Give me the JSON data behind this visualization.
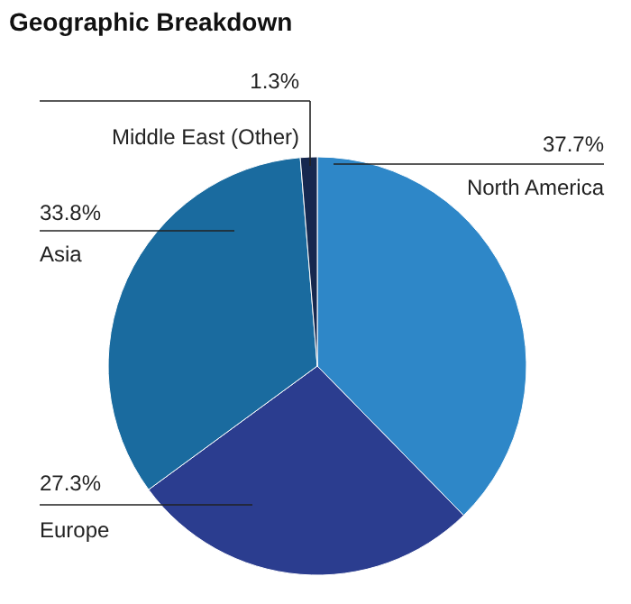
{
  "chart_data": {
    "type": "pie",
    "title": "Geographic Breakdown",
    "categories": [
      "North America",
      "Europe",
      "Asia",
      "Middle East (Other)"
    ],
    "values": [
      37.7,
      27.3,
      33.8,
      1.3
    ],
    "value_labels": [
      "37.7%",
      "27.3%",
      "33.8%",
      "1.3%"
    ],
    "colors": [
      "#2e87c8",
      "#2b3d8f",
      "#1a6b9f",
      "#16284f"
    ]
  }
}
